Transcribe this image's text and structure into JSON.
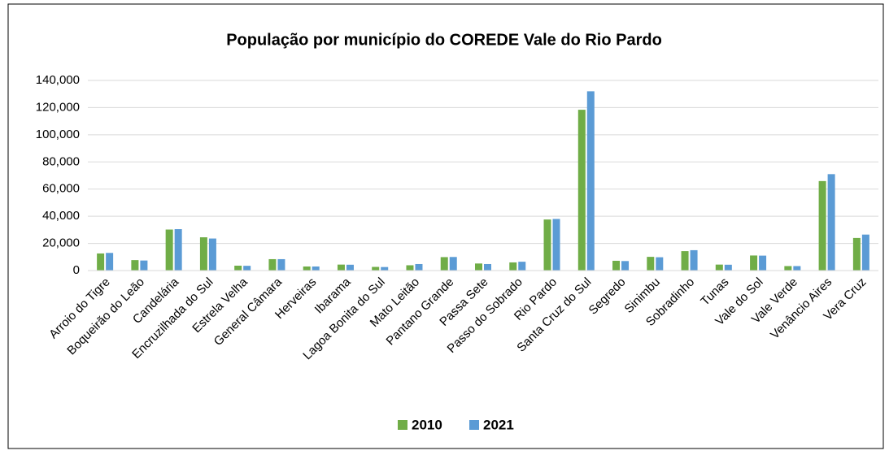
{
  "chart_data": {
    "type": "bar",
    "title": "População por município do COREDE Vale do Rio Pardo",
    "categories": [
      "Arroio do Tigre",
      "Boqueirão do Leão",
      "Candelária",
      "Encruzilhada do Sul",
      "Estrela Velha",
      "General Câmara",
      "Herveiras",
      "Ibarama",
      "Lagoa Bonita do Sul",
      "Mato Leitão",
      "Pantano Grande",
      "Passa Sete",
      "Passo do Sobrado",
      "Rio Pardo",
      "Santa Cruz do Sul",
      "Segredo",
      "Sinimbu",
      "Sobradinho",
      "Tunas",
      "Vale do Sol",
      "Vale Verde",
      "Venâncio Aires",
      "Vera Cruz"
    ],
    "series": [
      {
        "name": "2010",
        "color": "#70ad47",
        "values": [
          12600,
          7700,
          30200,
          24500,
          3600,
          8400,
          3000,
          4400,
          2700,
          3900,
          9900,
          5200,
          6000,
          37600,
          118400,
          7200,
          10100,
          14300,
          4400,
          11100,
          3300,
          65900,
          24000
        ]
      },
      {
        "name": "2021",
        "color": "#5b9bd5",
        "values": [
          13000,
          7400,
          30500,
          23600,
          3500,
          8400,
          3000,
          4300,
          2600,
          4800,
          10000,
          4800,
          6500,
          38000,
          132000,
          7000,
          9800,
          15000,
          4300,
          11000,
          3300,
          71000,
          26500
        ]
      }
    ],
    "ylim": [
      0,
      140000
    ],
    "yticks": [
      0,
      {
        "value": 20000,
        "label": "20,000"
      },
      {
        "value": 40000,
        "label": "40,000"
      },
      {
        "value": 60000,
        "label": "60,000"
      },
      {
        "value": 80000,
        "label": "80,000"
      },
      {
        "value": 100000,
        "label": "100,000"
      },
      {
        "value": 120000,
        "label": "120,000"
      },
      {
        "value": 140000,
        "label": "140,000"
      }
    ],
    "grid": true,
    "legend": "bottom"
  }
}
